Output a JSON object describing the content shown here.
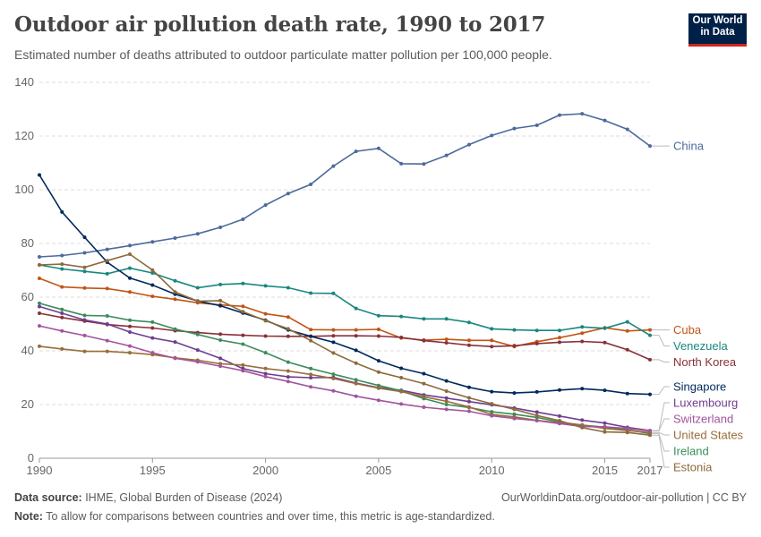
{
  "header": {
    "title": "Outdoor air pollution death rate, 1990 to 2017",
    "subtitle": "Estimated number of deaths attributed to outdoor particulate matter pollution per 100,000 people.",
    "logo_line1": "Our World",
    "logo_line2": "in Data"
  },
  "footer": {
    "source_label": "Data source:",
    "source_text": " IHME, Global Burden of Disease (2024)",
    "url": "OurWorldinData.org/outdoor-air-pollution | CC BY",
    "note_label": "Note:",
    "note_text": " To allow for comparisons between countries and over time, this metric is age-standardized."
  },
  "chart_data": {
    "type": "line",
    "xlim": [
      1990,
      2017
    ],
    "ylim": [
      0,
      140
    ],
    "x_ticks": [
      "1990",
      "1995",
      "2000",
      "2005",
      "2010",
      "2015",
      "2017"
    ],
    "y_ticks": [
      "0",
      "20",
      "40",
      "60",
      "80",
      "100",
      "120",
      "140"
    ],
    "grid": true,
    "legend": "right",
    "x": [
      1990,
      1991,
      1992,
      1993,
      1994,
      1995,
      1996,
      1997,
      1998,
      1999,
      2000,
      2001,
      2002,
      2003,
      2004,
      2005,
      2006,
      2007,
      2008,
      2009,
      2010,
      2011,
      2012,
      2013,
      2014,
      2015,
      2016,
      2017
    ],
    "series": [
      {
        "name": "China",
        "color": "#4c6a9c",
        "values": [
          75,
          75.5,
          76.5,
          77.8,
          79.2,
          80.6,
          82,
          83.6,
          86,
          89,
          94.3,
          98.6,
          102,
          108.8,
          114.3,
          115.4,
          109.7,
          109.6,
          112.8,
          116.8,
          120.2,
          122.8,
          124,
          127.8,
          128.3,
          125.8,
          122.5,
          116.3
        ]
      },
      {
        "name": "Cuba",
        "color": "#c15516",
        "values": [
          67,
          63.8,
          63.4,
          63.2,
          61.9,
          60.3,
          59.2,
          57.9,
          57.1,
          56.6,
          53.8,
          52.6,
          47.9,
          47.8,
          47.8,
          48,
          44.8,
          44,
          44.3,
          43.9,
          43.9,
          41.6,
          43.4,
          44.9,
          46.6,
          48.6,
          47.4,
          47.8
        ]
      },
      {
        "name": "Venezuela",
        "color": "#18877f",
        "values": [
          72,
          70.5,
          69.6,
          68.7,
          70.8,
          69,
          66.1,
          63.5,
          64.7,
          65.1,
          64.2,
          63.5,
          61.5,
          61.4,
          55.8,
          53.1,
          52.8,
          51.9,
          51.9,
          50.6,
          48.2,
          47.8,
          47.6,
          47.6,
          48.9,
          48.4,
          50.8,
          45.8
        ]
      },
      {
        "name": "North Korea",
        "color": "#883039",
        "values": [
          54,
          52.4,
          51.1,
          49.8,
          49.1,
          48.5,
          47.5,
          46.8,
          46.2,
          45.8,
          45.5,
          45.4,
          45.4,
          45.6,
          45.6,
          45.5,
          45,
          43.8,
          43,
          42.1,
          41.6,
          41.9,
          42.7,
          43.2,
          43.5,
          43.1,
          40.4,
          36.7
        ]
      },
      {
        "name": "Singapore",
        "color": "#00295b",
        "values": [
          105.5,
          91.7,
          82.3,
          73,
          67.1,
          64.5,
          61.1,
          58.6,
          56.8,
          54.1,
          51.4,
          47.8,
          45.4,
          43.2,
          40.2,
          36.3,
          33.5,
          31.5,
          28.8,
          26.4,
          24.8,
          24.3,
          24.7,
          25.4,
          25.9,
          25.3,
          24.1,
          23.8
        ]
      },
      {
        "name": "Luxembourg",
        "color": "#6d3e91",
        "values": [
          56.5,
          54,
          51.5,
          50,
          47,
          44.8,
          43.3,
          40.3,
          37.2,
          33.4,
          31.5,
          30.3,
          30,
          30.1,
          28,
          26.3,
          25.3,
          23.6,
          22.4,
          21.1,
          19.9,
          18.7,
          17.2,
          15.7,
          14.2,
          13.1,
          11.5,
          10.3
        ]
      },
      {
        "name": "Ireland",
        "color": "#3c8c5c",
        "values": [
          57.7,
          55.4,
          53.2,
          53,
          51.4,
          50.7,
          48.1,
          46.1,
          44,
          42.5,
          39.3,
          35.8,
          33.4,
          31.3,
          29.2,
          27.1,
          25.1,
          22.2,
          20,
          18.9,
          17.3,
          16.4,
          15.2,
          13.5,
          12.3,
          11.6,
          10.6,
          9.2
        ]
      },
      {
        "name": "United States",
        "color": "#996d39",
        "values": [
          41.7,
          40.7,
          39.8,
          39.8,
          39.3,
          38.6,
          37.4,
          36.5,
          35.2,
          34.7,
          33.4,
          32.5,
          31.2,
          29.7,
          27.8,
          26.1,
          24.8,
          22.9,
          21.2,
          19.1,
          16.3,
          15.4,
          14.1,
          13.2,
          12.4,
          11.1,
          10.3,
          9.6
        ]
      },
      {
        "name": "Switzerland",
        "color": "#a2559c",
        "values": [
          49.3,
          47.4,
          45.7,
          43.8,
          41.8,
          39.3,
          37.2,
          35.9,
          34.3,
          32.6,
          30.4,
          28.6,
          26.6,
          25.1,
          23.1,
          21.6,
          20.2,
          19,
          18.2,
          17.5,
          15.8,
          14.8,
          14,
          12.9,
          11.8,
          11.7,
          11.1,
          10.2
        ]
      },
      {
        "name": "Estonia",
        "color": "#8c6a3a",
        "values": [
          72,
          72.3,
          71.1,
          73.6,
          76,
          70.1,
          61.9,
          58.5,
          58.7,
          54.6,
          51.2,
          48.2,
          43.8,
          39.2,
          35.4,
          32.1,
          30,
          27.8,
          25,
          22.5,
          20.3,
          18.2,
          15.9,
          14,
          11.4,
          9.8,
          9.6,
          8.6
        ]
      }
    ]
  }
}
